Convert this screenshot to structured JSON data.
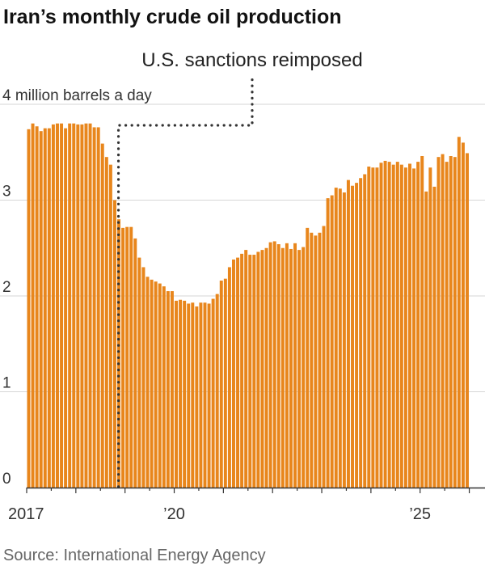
{
  "chart_data": {
    "type": "bar",
    "title": "Iran’s monthly crude oil production",
    "y_unit_label": "4 million barrels a day",
    "y_ticks": [
      {
        "value": 0,
        "label": "0"
      },
      {
        "value": 1,
        "label": "1"
      },
      {
        "value": 2,
        "label": "2"
      },
      {
        "value": 3,
        "label": "3"
      },
      {
        "value": 4,
        "label": "4 million barrels a day"
      }
    ],
    "ylim": [
      0,
      4
    ],
    "x_ticks": [
      {
        "date": "2017-01",
        "label": "2017"
      },
      {
        "date": "2020-01",
        "label": "’20"
      },
      {
        "date": "2025-01",
        "label": "’25"
      }
    ],
    "x_start": "2017-01",
    "annotation": {
      "label": "U.S. sanctions reimposed",
      "date": "2018-11"
    },
    "bar_color": "#e8861c",
    "source": "Source: International Energy Agency",
    "values": [
      3.74,
      3.8,
      3.77,
      3.72,
      3.75,
      3.75,
      3.79,
      3.8,
      3.8,
      3.75,
      3.8,
      3.8,
      3.79,
      3.79,
      3.8,
      3.8,
      3.76,
      3.76,
      3.59,
      3.45,
      3.37,
      3.0,
      2.8,
      2.71,
      2.72,
      2.72,
      2.6,
      2.4,
      2.3,
      2.2,
      2.17,
      2.15,
      2.13,
      2.1,
      2.05,
      2.05,
      1.95,
      1.96,
      1.95,
      1.92,
      1.93,
      1.89,
      1.93,
      1.93,
      1.92,
      1.97,
      2.02,
      2.16,
      2.18,
      2.3,
      2.38,
      2.4,
      2.44,
      2.48,
      2.43,
      2.43,
      2.46,
      2.48,
      2.5,
      2.56,
      2.57,
      2.54,
      2.5,
      2.55,
      2.49,
      2.55,
      2.48,
      2.51,
      2.71,
      2.66,
      2.63,
      2.66,
      2.73,
      3.02,
      3.05,
      3.13,
      3.12,
      3.08,
      3.21,
      3.15,
      3.18,
      3.23,
      3.27,
      3.35,
      3.34,
      3.34,
      3.39,
      3.41,
      3.4,
      3.37,
      3.4,
      3.37,
      3.34,
      3.38,
      3.33,
      3.4,
      3.46,
      3.09,
      3.34,
      3.14,
      3.45,
      3.48,
      3.4,
      3.46,
      3.45,
      3.66,
      3.6,
      3.49
    ]
  }
}
